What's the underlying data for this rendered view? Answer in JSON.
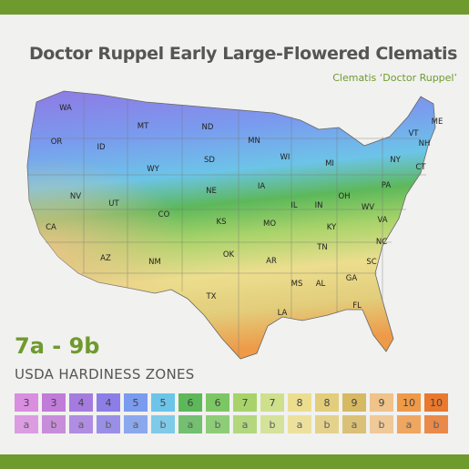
{
  "title": "Doctor Ruppel Early Large-Flowered Clematis",
  "subtitle": "Clematis ‘Doctor Ruppel’",
  "zone_range": "7a - 9b",
  "legend_title": "USDA HARDINESS ZONES",
  "legend": [
    {
      "zone": "3",
      "sub": "a",
      "color": "#d98ee0"
    },
    {
      "zone": "3",
      "sub": "b",
      "color": "#c07cd8"
    },
    {
      "zone": "4",
      "sub": "a",
      "color": "#a57be0"
    },
    {
      "zone": "4",
      "sub": "b",
      "color": "#8c7ee6"
    },
    {
      "zone": "5",
      "sub": "a",
      "color": "#7a9bee"
    },
    {
      "zone": "5",
      "sub": "b",
      "color": "#6cc4e8"
    },
    {
      "zone": "6",
      "sub": "a",
      "color": "#5db85a"
    },
    {
      "zone": "6",
      "sub": "b",
      "color": "#7cc764"
    },
    {
      "zone": "7",
      "sub": "a",
      "color": "#a8d36a"
    },
    {
      "zone": "7",
      "sub": "b",
      "color": "#cfe08c"
    },
    {
      "zone": "8",
      "sub": "a",
      "color": "#ecde8e"
    },
    {
      "zone": "8",
      "sub": "b",
      "color": "#e2cd7b"
    },
    {
      "zone": "9",
      "sub": "a",
      "color": "#d6b963"
    },
    {
      "zone": "9",
      "sub": "b",
      "color": "#efc38a"
    },
    {
      "zone": "10",
      "sub": "a",
      "color": "#ee9a48"
    },
    {
      "zone": "10",
      "sub": "b",
      "color": "#e8792e"
    }
  ],
  "states": [
    "WA",
    "OR",
    "ID",
    "MT",
    "ND",
    "MN",
    "ME",
    "NH",
    "VT",
    "WI",
    "MI",
    "NY",
    "CT",
    "SD",
    "WY",
    "NV",
    "CA",
    "UT",
    "CO",
    "NE",
    "IA",
    "IL",
    "IN",
    "OH",
    "PA",
    "KS",
    "MO",
    "KY",
    "WV",
    "VA",
    "AZ",
    "NM",
    "OK",
    "AR",
    "TN",
    "NC",
    "SC",
    "TX",
    "MS",
    "AL",
    "GA",
    "LA",
    "FL"
  ]
}
